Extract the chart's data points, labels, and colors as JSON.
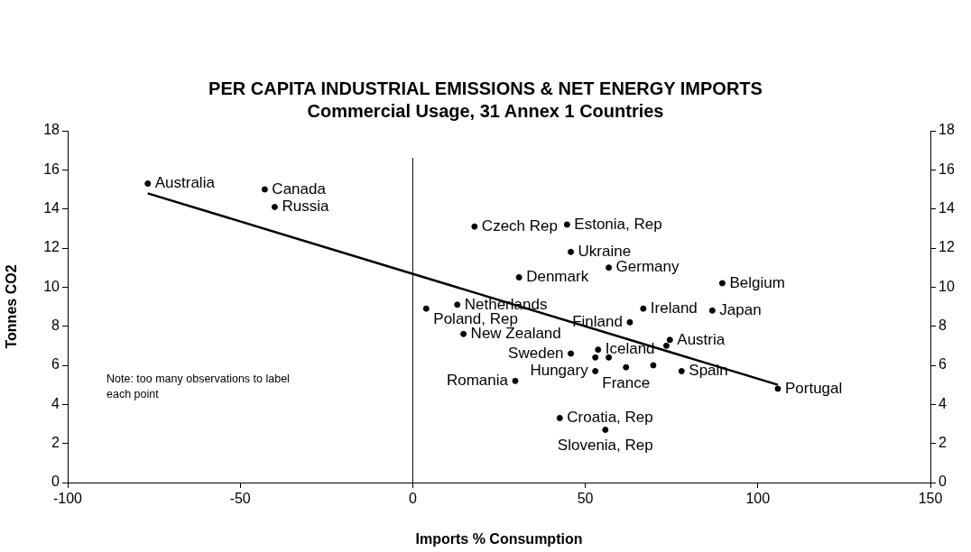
{
  "chart_data": {
    "type": "scatter",
    "title": "PER CAPITA INDUSTRIAL EMISSIONS & NET ENERGY IMPORTS",
    "subtitle": "Commercial Usage, 31 Annex 1 Countries",
    "xlabel": "Imports % Consumption",
    "ylabel": "Tonnes CO2",
    "xlim": [
      -100,
      150
    ],
    "xticks": [
      -100,
      -50,
      0,
      50,
      100,
      150
    ],
    "ylim": [
      0,
      18
    ],
    "yticks": [
      0,
      2,
      4,
      6,
      8,
      10,
      12,
      14,
      16,
      18
    ],
    "y2lim": [
      0,
      18
    ],
    "y2ticks": [
      0,
      2,
      4,
      6,
      8,
      10,
      12,
      14,
      16,
      18
    ],
    "grid": false,
    "legend": false,
    "marker": "circle",
    "series": [
      {
        "type": "scatter",
        "color": "#000000",
        "x": [
          -76.8,
          -42.9,
          -40.0,
          17.9,
          44.7,
          45.8,
          56.8,
          30.8,
          89.7,
          12.9,
          3.9,
          66.8,
          86.8,
          62.9,
          14.7,
          74.5,
          73.5,
          53.7,
          45.8,
          52.9,
          56.8,
          52.9,
          61.8,
          69.7,
          77.9,
          105.8,
          29.7,
          42.6,
          55.8
        ],
        "values": [
          15.3,
          15.0,
          14.1,
          13.1,
          13.2,
          11.8,
          11.0,
          10.5,
          10.2,
          9.1,
          8.9,
          8.9,
          8.8,
          8.2,
          7.6,
          7.3,
          7.0,
          6.8,
          6.6,
          6.4,
          6.4,
          5.7,
          5.9,
          6.0,
          5.7,
          4.8,
          5.2,
          3.3,
          2.7
        ]
      },
      {
        "type": "line",
        "color": "#000000",
        "marker": "none",
        "x": [
          -76.8,
          105.8
        ],
        "values": [
          14.8,
          5.0
        ]
      }
    ],
    "ref_lines": [
      {
        "axis": "x",
        "value": 0,
        "color": "#000000"
      }
    ],
    "annotations": [
      {
        "text": "Australia",
        "x": -76.8,
        "y": 15.3
      },
      {
        "text": "Canada",
        "x": -42.9,
        "y": 15.0
      },
      {
        "text": "Russia",
        "x": -40.0,
        "y": 14.1
      },
      {
        "text": "Czech Rep",
        "x": 17.9,
        "y": 13.1
      },
      {
        "text": "Estonia, Rep",
        "x": 44.7,
        "y": 13.2
      },
      {
        "text": "Ukraine",
        "x": 45.8,
        "y": 11.8
      },
      {
        "text": "Germany",
        "x": 56.8,
        "y": 11.0
      },
      {
        "text": "Denmark",
        "x": 30.8,
        "y": 10.5
      },
      {
        "text": "Belgium",
        "x": 89.7,
        "y": 10.2
      },
      {
        "text": "Netherlands",
        "x": 12.9,
        "y": 9.1
      },
      {
        "text": "Poland, Rep",
        "x": 3.9,
        "y": 8.9
      },
      {
        "text": "Ireland",
        "x": 66.8,
        "y": 8.9
      },
      {
        "text": "Japan",
        "x": 86.8,
        "y": 8.8
      },
      {
        "text": "Finland",
        "x": 62.9,
        "y": 8.2
      },
      {
        "text": "New Zealand",
        "x": 14.7,
        "y": 7.6
      },
      {
        "text": "Austria",
        "x": 74.5,
        "y": 7.3
      },
      {
        "text": "Iceland",
        "x": 53.7,
        "y": 6.8
      },
      {
        "text": "Sweden",
        "x": 45.8,
        "y": 6.6
      },
      {
        "text": "Hungary",
        "x": 52.9,
        "y": 5.7
      },
      {
        "text": "France",
        "x": 61.8,
        "y": 5.9
      },
      {
        "text": "Spain",
        "x": 77.9,
        "y": 5.7
      },
      {
        "text": "Portugal",
        "x": 105.8,
        "y": 4.8
      },
      {
        "text": "Romania",
        "x": 29.7,
        "y": 5.2
      },
      {
        "text": "Croatia, Rep",
        "x": 42.6,
        "y": 3.3
      },
      {
        "text": "Slovenia, Rep",
        "x": 55.8,
        "y": 2.7
      },
      "Note: too many observations to label each point"
    ]
  }
}
